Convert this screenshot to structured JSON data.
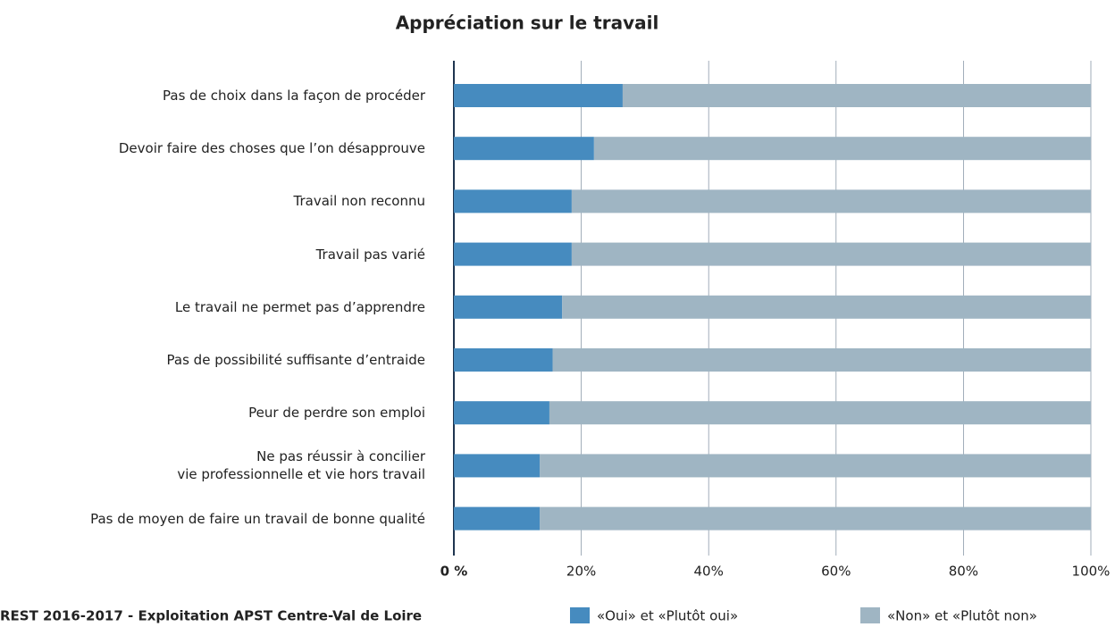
{
  "chart_data": {
    "type": "stacked_barh",
    "title": "Appréciation sur le travail",
    "source": "REST 2016-2017 - Exploitation APST Centre-Val de Loire",
    "categories": [
      "Pas de choix dans la façon de procéder",
      "Devoir faire des choses que l’on désapprouve",
      "Travail non reconnu",
      "Travail pas varié",
      "Le travail ne permet pas d’apprendre",
      "Pas de possibilité suffisante d’entraide",
      "Peur de perdre son emploi",
      "Ne pas réussir à concilier\nvie professionnelle et vie hors travail",
      "Pas de moyen de faire un travail de bonne qualité"
    ],
    "series": [
      {
        "name": "«Oui» et «Plutôt oui»",
        "color": "#468bbf",
        "values": [
          26.5,
          22,
          18.5,
          18.5,
          17,
          15.5,
          15,
          13.5,
          13.5
        ]
      },
      {
        "name": "«Non» et «Plutôt non»",
        "color": "#9fb5c3",
        "values": [
          73.5,
          78,
          81.5,
          81.5,
          83,
          84.5,
          85,
          86.5,
          86.5
        ]
      }
    ],
    "xlim": [
      0,
      100
    ],
    "xticks": [
      {
        "value": 0,
        "label": "0 %"
      },
      {
        "value": 20,
        "label": "20%"
      },
      {
        "value": 40,
        "label": "40%"
      },
      {
        "value": 60,
        "label": "60%"
      },
      {
        "value": 80,
        "label": "80%"
      },
      {
        "value": 100,
        "label": "100%"
      }
    ],
    "grid": true
  }
}
